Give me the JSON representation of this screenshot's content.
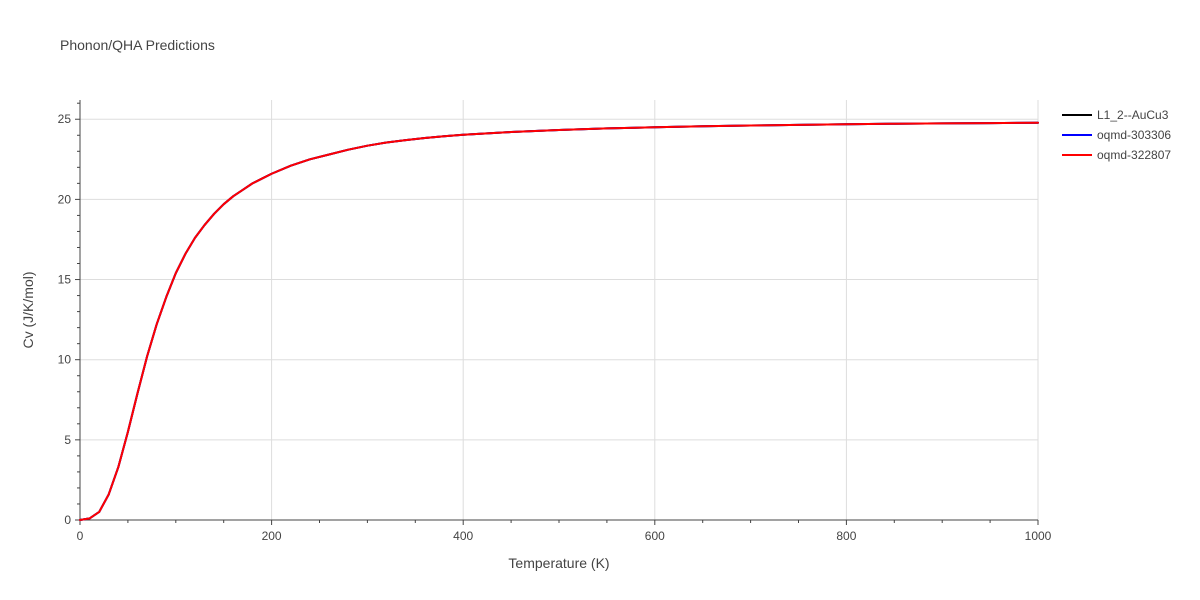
{
  "chart_data": {
    "type": "line",
    "title": "Phonon/QHA Predictions",
    "xlabel": "Temperature (K)",
    "ylabel": "Cv (J/K/mol)",
    "xlim": [
      0,
      1000
    ],
    "ylim": [
      0,
      26.2
    ],
    "x_ticks": [
      0,
      200,
      400,
      600,
      800,
      1000
    ],
    "y_ticks": [
      0,
      5,
      10,
      15,
      20,
      25
    ],
    "x_tick_labels": [
      "0",
      "200",
      "400",
      "600",
      "800",
      "1000"
    ],
    "y_tick_labels": [
      "0",
      "5",
      "10",
      "15",
      "20",
      "25"
    ],
    "grid": true,
    "legend_position": "top-right, outside plot",
    "x": [
      0,
      10,
      20,
      30,
      40,
      50,
      60,
      70,
      80,
      90,
      100,
      110,
      120,
      130,
      140,
      150,
      160,
      170,
      180,
      190,
      200,
      220,
      240,
      260,
      280,
      300,
      320,
      340,
      360,
      380,
      400,
      450,
      500,
      550,
      600,
      650,
      700,
      750,
      800,
      850,
      900,
      950,
      1000
    ],
    "series": [
      {
        "name": "L1_2--AuCu3",
        "color": "#000000",
        "values": [
          0,
          0.1,
          0.5,
          1.6,
          3.3,
          5.5,
          7.9,
          10.2,
          12.2,
          13.9,
          15.4,
          16.6,
          17.6,
          18.4,
          19.1,
          19.7,
          20.2,
          20.6,
          21.0,
          21.3,
          21.6,
          22.1,
          22.5,
          22.8,
          23.1,
          23.35,
          23.55,
          23.7,
          23.83,
          23.94,
          24.03,
          24.2,
          24.33,
          24.43,
          24.5,
          24.56,
          24.61,
          24.65,
          24.69,
          24.72,
          24.74,
          24.76,
          24.78
        ]
      },
      {
        "name": "oqmd-303306",
        "color": "#0000ff",
        "values": [
          0,
          0.1,
          0.5,
          1.6,
          3.3,
          5.5,
          7.9,
          10.2,
          12.2,
          13.9,
          15.4,
          16.6,
          17.6,
          18.4,
          19.1,
          19.7,
          20.2,
          20.6,
          21.0,
          21.3,
          21.6,
          22.1,
          22.5,
          22.8,
          23.1,
          23.35,
          23.55,
          23.7,
          23.83,
          23.94,
          24.03,
          24.2,
          24.33,
          24.43,
          24.5,
          24.56,
          24.61,
          24.65,
          24.69,
          24.72,
          24.74,
          24.76,
          24.78
        ]
      },
      {
        "name": "oqmd-322807",
        "color": "#ff0000",
        "values": [
          0,
          0.1,
          0.5,
          1.6,
          3.3,
          5.5,
          7.9,
          10.2,
          12.2,
          13.9,
          15.4,
          16.6,
          17.6,
          18.4,
          19.1,
          19.7,
          20.2,
          20.6,
          21.0,
          21.3,
          21.6,
          22.1,
          22.5,
          22.8,
          23.1,
          23.35,
          23.55,
          23.7,
          23.83,
          23.94,
          24.03,
          24.2,
          24.33,
          24.43,
          24.5,
          24.56,
          24.61,
          24.65,
          24.69,
          24.72,
          24.74,
          24.76,
          24.78
        ]
      }
    ]
  },
  "colors": {
    "text": "#444444",
    "title": "#444444",
    "grid": "#dddddd",
    "axis": "#444444",
    "background": "#ffffff"
  }
}
